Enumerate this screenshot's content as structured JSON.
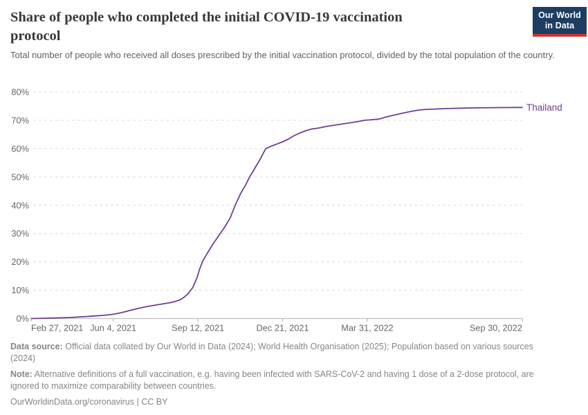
{
  "header": {
    "title": "Share of people who completed the initial COVID-19 vaccination protocol",
    "subtitle": "Total number of people who received all doses prescribed by the initial vaccination protocol, divided by the total population of the country."
  },
  "logo": {
    "line1": "Our World",
    "line2": "in Data",
    "bg_color": "#1d3d63",
    "bar_color": "#cb342b"
  },
  "chart_data": {
    "type": "line",
    "title": "Share of people who completed the initial COVID-19 vaccination protocol",
    "xlabel": "",
    "ylabel": "",
    "grid": "horizontal-dashed",
    "legend_position": "end-of-line",
    "y_axis": {
      "min": 0,
      "max": 80,
      "tick_step": 10,
      "tick_suffix": "%",
      "ticks": [
        0,
        10,
        20,
        30,
        40,
        50,
        60,
        70,
        80
      ]
    },
    "x_axis": {
      "unit": "days since Feb 27, 2021",
      "min_day": 0,
      "max_day": 580,
      "ticks": [
        {
          "label": "Feb 27, 2021",
          "day": 0,
          "anchor": "start"
        },
        {
          "label": "Jun 4, 2021",
          "day": 97,
          "anchor": "middle"
        },
        {
          "label": "Sep 12, 2021",
          "day": 197,
          "anchor": "middle"
        },
        {
          "label": "Dec 21, 2021",
          "day": 297,
          "anchor": "middle"
        },
        {
          "label": "Mar 31, 2022",
          "day": 397,
          "anchor": "middle"
        },
        {
          "label": "Sep 30, 2022",
          "day": 580,
          "anchor": "end"
        }
      ]
    },
    "series": [
      {
        "name": "Thailand",
        "color": "#6D3E91",
        "points": [
          [
            0,
            0
          ],
          [
            15,
            0.1
          ],
          [
            30,
            0.2
          ],
          [
            45,
            0.35
          ],
          [
            60,
            0.6
          ],
          [
            75,
            0.9
          ],
          [
            85,
            1.1
          ],
          [
            97,
            1.5
          ],
          [
            106,
            2.0
          ],
          [
            115,
            2.7
          ],
          [
            124,
            3.4
          ],
          [
            133,
            4.0
          ],
          [
            140,
            4.4
          ],
          [
            148,
            4.8
          ],
          [
            156,
            5.2
          ],
          [
            164,
            5.6
          ],
          [
            170,
            6.0
          ],
          [
            176,
            6.6
          ],
          [
            181,
            7.6
          ],
          [
            186,
            9.0
          ],
          [
            191,
            11.0
          ],
          [
            196,
            14.5
          ],
          [
            199,
            17.5
          ],
          [
            203,
            20.5
          ],
          [
            208,
            23.0
          ],
          [
            214,
            26.0
          ],
          [
            222,
            29.5
          ],
          [
            228,
            32.0
          ],
          [
            235,
            35.5
          ],
          [
            241,
            40.0
          ],
          [
            248,
            44.5
          ],
          [
            253,
            47.0
          ],
          [
            258,
            50.0
          ],
          [
            264,
            53.0
          ],
          [
            270,
            56.0
          ],
          [
            277,
            60.0
          ],
          [
            283,
            60.8
          ],
          [
            290,
            61.6
          ],
          [
            297,
            62.4
          ],
          [
            304,
            63.4
          ],
          [
            310,
            64.5
          ],
          [
            317,
            65.5
          ],
          [
            324,
            66.3
          ],
          [
            331,
            66.9
          ],
          [
            340,
            67.3
          ],
          [
            350,
            67.9
          ],
          [
            361,
            68.4
          ],
          [
            372,
            68.9
          ],
          [
            383,
            69.4
          ],
          [
            394,
            70.0
          ],
          [
            402,
            70.2
          ],
          [
            409,
            70.4
          ],
          [
            413,
            70.6
          ],
          [
            417,
            71.0
          ],
          [
            424,
            71.5
          ],
          [
            431,
            72.0
          ],
          [
            438,
            72.5
          ],
          [
            446,
            73.0
          ],
          [
            455,
            73.5
          ],
          [
            464,
            73.8
          ],
          [
            477,
            74.0
          ],
          [
            492,
            74.15
          ],
          [
            510,
            74.3
          ],
          [
            530,
            74.4
          ],
          [
            555,
            74.5
          ],
          [
            580,
            74.55
          ]
        ]
      }
    ]
  },
  "footer": {
    "datasource_label": "Data source:",
    "datasource_text": "Official data collated by Our World in Data (2024); World Health Organisation (2025); Population based on various sources (2024)",
    "note_label": "Note:",
    "note_text": "Alternative definitions of a full vaccination, e.g. having been infected with SARS-CoV-2 and having 1 dose of a 2-dose protocol, are ignored to maximize comparability between countries.",
    "citation_url": "OurWorldinData.org/coronavirus",
    "citation_separator": "|",
    "citation_license": "CC BY"
  }
}
